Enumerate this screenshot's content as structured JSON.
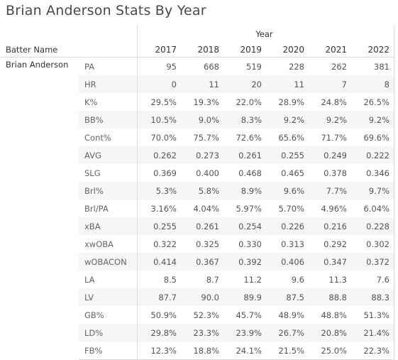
{
  "title": "Brian Anderson Stats By Year",
  "table": {
    "column_group_label": "Year",
    "row_header_label": "Batter Name",
    "batter": "Brian Anderson"
  },
  "chart_data": {
    "type": "table",
    "title": "Brian Anderson Stats By Year",
    "columns": [
      "2017",
      "2018",
      "2019",
      "2020",
      "2021",
      "2022"
    ],
    "rows": [
      {
        "metric": "PA",
        "values": [
          "95",
          "668",
          "519",
          "228",
          "262",
          "381"
        ]
      },
      {
        "metric": "HR",
        "values": [
          "0",
          "11",
          "20",
          "11",
          "7",
          "8"
        ]
      },
      {
        "metric": "K%",
        "values": [
          "29.5%",
          "19.3%",
          "22.0%",
          "28.9%",
          "24.8%",
          "26.5%"
        ]
      },
      {
        "metric": "BB%",
        "values": [
          "10.5%",
          "9.0%",
          "8.3%",
          "9.2%",
          "9.2%",
          "9.2%"
        ]
      },
      {
        "metric": "Cont%",
        "values": [
          "70.0%",
          "75.7%",
          "72.6%",
          "65.6%",
          "71.7%",
          "69.6%"
        ]
      },
      {
        "metric": "AVG",
        "values": [
          "0.262",
          "0.273",
          "0.261",
          "0.255",
          "0.249",
          "0.222"
        ]
      },
      {
        "metric": "SLG",
        "values": [
          "0.369",
          "0.400",
          "0.468",
          "0.465",
          "0.378",
          "0.346"
        ]
      },
      {
        "metric": "Brl%",
        "values": [
          "5.3%",
          "5.8%",
          "8.9%",
          "9.6%",
          "7.7%",
          "9.7%"
        ]
      },
      {
        "metric": "Brl/PA",
        "values": [
          "3.16%",
          "4.04%",
          "5.97%",
          "5.70%",
          "4.96%",
          "6.04%"
        ]
      },
      {
        "metric": "xBA",
        "values": [
          "0.255",
          "0.261",
          "0.254",
          "0.226",
          "0.216",
          "0.228"
        ]
      },
      {
        "metric": "xwOBA",
        "values": [
          "0.322",
          "0.325",
          "0.330",
          "0.313",
          "0.292",
          "0.302"
        ]
      },
      {
        "metric": "wOBACON",
        "values": [
          "0.414",
          "0.367",
          "0.392",
          "0.406",
          "0.347",
          "0.372"
        ]
      },
      {
        "metric": "LA",
        "values": [
          "8.5",
          "8.7",
          "11.2",
          "9.6",
          "11.3",
          "7.6"
        ]
      },
      {
        "metric": "LV",
        "values": [
          "87.7",
          "90.0",
          "89.9",
          "87.5",
          "88.8",
          "88.3"
        ]
      },
      {
        "metric": "GB%",
        "values": [
          "50.9%",
          "52.3%",
          "45.7%",
          "48.9%",
          "48.8%",
          "51.3%"
        ]
      },
      {
        "metric": "LD%",
        "values": [
          "29.8%",
          "23.3%",
          "23.9%",
          "26.7%",
          "20.8%",
          "21.4%"
        ]
      },
      {
        "metric": "FB%",
        "values": [
          "12.3%",
          "18.8%",
          "24.1%",
          "21.5%",
          "25.0%",
          "22.3%"
        ]
      }
    ]
  }
}
